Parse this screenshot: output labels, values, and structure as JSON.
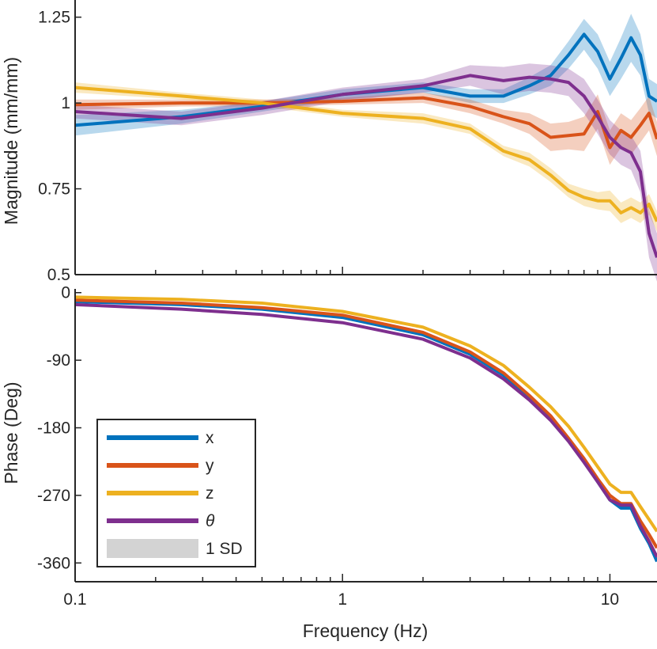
{
  "chart_data": [
    {
      "type": "line",
      "panel": "magnitude",
      "ylabel": "Magnitude (mm/mm)",
      "xlabel": "",
      "xscale": "log",
      "xlim": [
        0.1,
        15
      ],
      "ylim": [
        0.5,
        1.3
      ],
      "yticks": [
        0.5,
        0.75,
        1,
        1.25
      ],
      "ytick_labels": [
        "0.5",
        "0.75",
        "1",
        "1.25"
      ],
      "x": [
        0.1,
        0.25,
        0.5,
        1,
        2,
        3,
        4,
        5,
        6,
        7,
        8,
        9,
        10,
        11,
        12,
        13,
        14,
        15
      ],
      "series": [
        {
          "name": "x",
          "values": [
            0.935,
            0.96,
            0.99,
            1.025,
            1.045,
            1.02,
            1.02,
            1.05,
            1.08,
            1.14,
            1.2,
            1.15,
            1.07,
            1.13,
            1.19,
            1.14,
            1.02,
            1.005
          ],
          "sd": [
            0.03,
            0.02,
            0.015,
            0.015,
            0.015,
            0.02,
            0.02,
            0.025,
            0.03,
            0.04,
            0.045,
            0.05,
            0.05,
            0.06,
            0.07,
            0.06,
            0.05,
            0.05
          ]
        },
        {
          "name": "y",
          "values": [
            0.995,
            1.0,
            1.0,
            1.005,
            1.015,
            0.99,
            0.96,
            0.94,
            0.9,
            0.905,
            0.91,
            0.975,
            0.87,
            0.92,
            0.9,
            0.935,
            0.97,
            0.895
          ],
          "sd": [
            0.015,
            0.01,
            0.01,
            0.01,
            0.015,
            0.02,
            0.02,
            0.03,
            0.04,
            0.04,
            0.05,
            0.05,
            0.05,
            0.05,
            0.05,
            0.05,
            0.05,
            0.05
          ]
        },
        {
          "name": "z",
          "values": [
            1.045,
            1.02,
            1.0,
            0.97,
            0.955,
            0.925,
            0.86,
            0.835,
            0.79,
            0.745,
            0.725,
            0.715,
            0.715,
            0.68,
            0.695,
            0.68,
            0.705,
            0.655
          ],
          "sd": [
            0.015,
            0.01,
            0.01,
            0.01,
            0.015,
            0.015,
            0.015,
            0.02,
            0.02,
            0.02,
            0.025,
            0.025,
            0.03,
            0.03,
            0.03,
            0.03,
            0.03,
            0.03
          ]
        },
        {
          "name": "θ",
          "values": [
            0.975,
            0.955,
            0.985,
            1.025,
            1.05,
            1.08,
            1.065,
            1.075,
            1.07,
            1.06,
            1.02,
            0.96,
            0.9,
            0.87,
            0.855,
            0.8,
            0.62,
            0.55
          ],
          "sd": [
            0.02,
            0.02,
            0.02,
            0.02,
            0.02,
            0.03,
            0.04,
            0.04,
            0.04,
            0.04,
            0.05,
            0.05,
            0.05,
            0.05,
            0.05,
            0.06,
            0.07,
            0.07
          ]
        }
      ]
    },
    {
      "type": "line",
      "panel": "phase",
      "ylabel": "Phase (Deg)",
      "xlabel": "Frequency (Hz)",
      "xscale": "log",
      "xlim": [
        0.1,
        15
      ],
      "xticks": [
        0.1,
        1,
        10
      ],
      "xtick_labels": [
        "0.1",
        "1",
        "10"
      ],
      "ylim": [
        -385,
        5
      ],
      "yticks": [
        0,
        -90,
        -180,
        -270,
        -360
      ],
      "ytick_labels": [
        "0",
        "-90",
        "-180",
        "-270",
        "-360"
      ],
      "x": [
        0.1,
        0.25,
        0.5,
        1,
        2,
        3,
        4,
        5,
        6,
        7,
        8,
        9,
        10,
        11,
        12,
        13,
        14,
        15
      ],
      "series": [
        {
          "name": "x",
          "values": [
            -12,
            -16,
            -22,
            -33,
            -56,
            -82,
            -110,
            -140,
            -167,
            -197,
            -225,
            -252,
            -276,
            -287,
            -287,
            -314,
            -334,
            -358
          ]
        },
        {
          "name": "y",
          "values": [
            -10,
            -14,
            -20,
            -30,
            -53,
            -79,
            -107,
            -137,
            -164,
            -194,
            -221,
            -248,
            -270,
            -281,
            -281,
            -304,
            -322,
            -340
          ]
        },
        {
          "name": "z",
          "values": [
            -6,
            -9,
            -14,
            -25,
            -46,
            -71,
            -97,
            -126,
            -152,
            -178,
            -206,
            -232,
            -255,
            -266,
            -266,
            -285,
            -302,
            -318
          ]
        },
        {
          "name": "θ",
          "values": [
            -16,
            -22,
            -29,
            -40,
            -62,
            -87,
            -115,
            -143,
            -170,
            -198,
            -226,
            -252,
            -276,
            -283,
            -283,
            -311,
            -331,
            -352
          ]
        }
      ]
    }
  ],
  "legend": {
    "placement": "bottom-left of phase panel",
    "items": [
      {
        "label": "x"
      },
      {
        "label": "y"
      },
      {
        "label": "z"
      },
      {
        "label": "θ"
      },
      {
        "label": "1 SD"
      }
    ]
  },
  "colors": {
    "x": "#0072BD",
    "y": "#D95319",
    "z": "#EDB120",
    "θ": "#7E2F8E",
    "sd_patch": "#D3D3D3",
    "axis": "#262626"
  }
}
